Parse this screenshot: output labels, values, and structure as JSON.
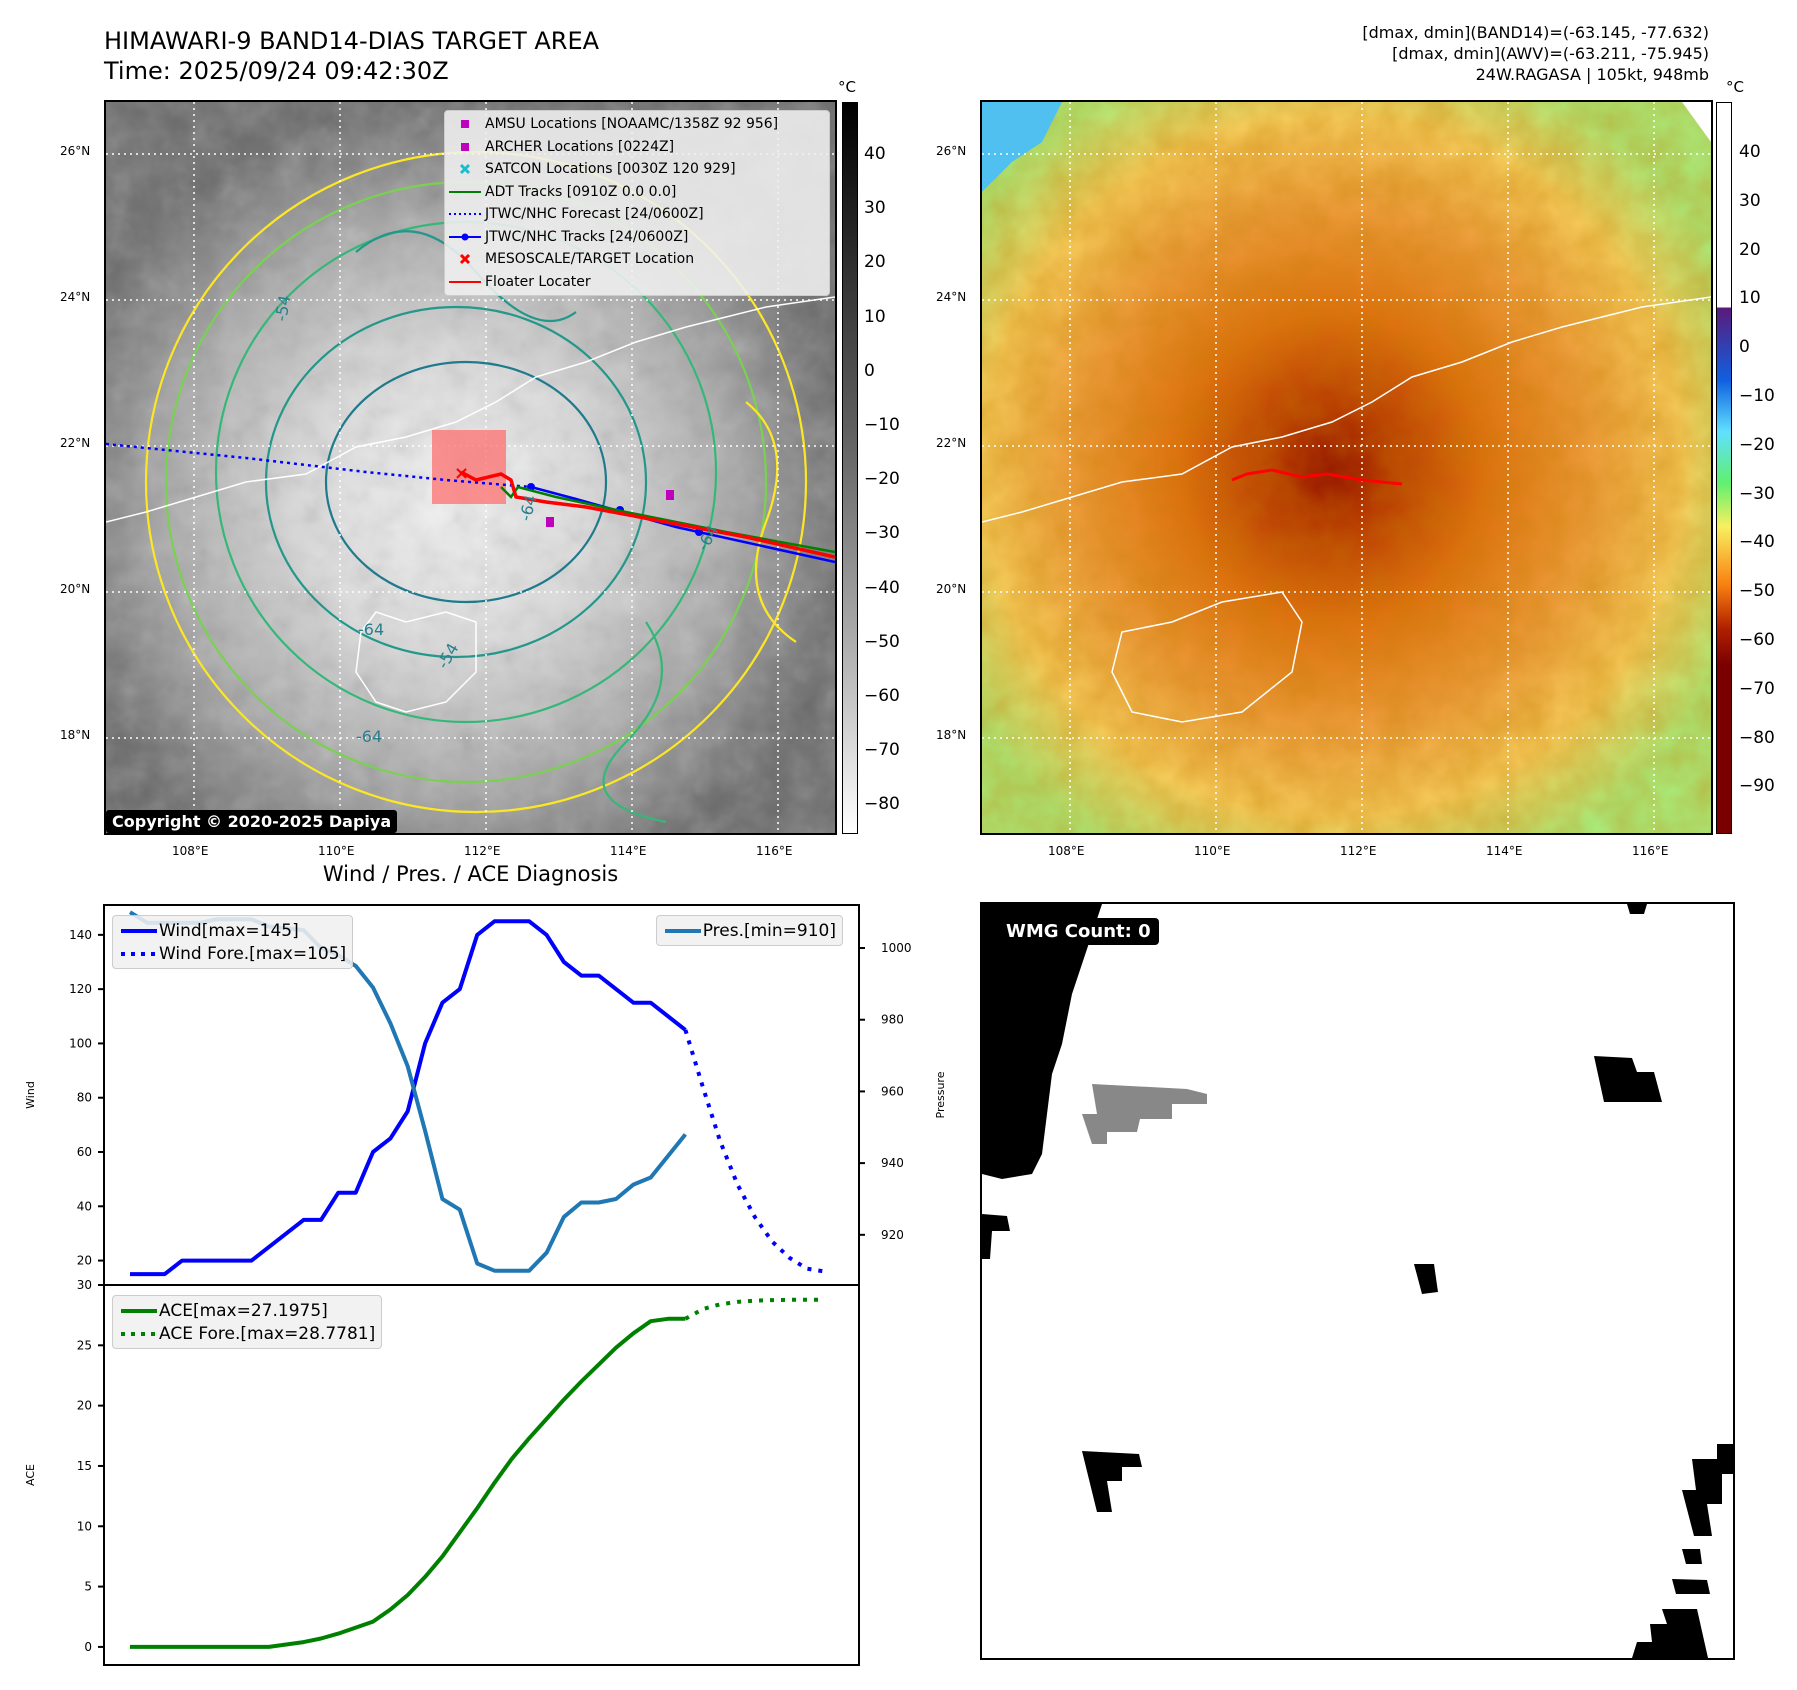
{
  "header": {
    "title_line1": "HIMAWARI-9 BAND14-DIAS TARGET AREA",
    "title_line2": "Time: 2025/09/24 09:42:30Z",
    "stats_line1": "[dmax, dmin](BAND14)=(-63.145, -77.632)",
    "stats_line2": "[dmax, dmin](AWV)=(-63.211, -75.945)",
    "stats_line3": "24W.RAGASA | 105kt, 948mb"
  },
  "map": {
    "lat_labels": [
      "26°N",
      "24°N",
      "22°N",
      "20°N",
      "18°N"
    ],
    "lon_labels": [
      "108°E",
      "110°E",
      "112°E",
      "114°E",
      "116°E"
    ],
    "contour_labels": [
      "-64",
      "-64",
      "-54",
      "-64",
      "-54",
      "-64"
    ],
    "copyright": "Copyright © 2020-2025 Dapiya",
    "legend": [
      {
        "label": "AMSU Locations [NOAAMC/1358Z 92 956]",
        "symbol": "square",
        "color": "#bf00bf"
      },
      {
        "label": "ARCHER Locations [0224Z]",
        "symbol": "square",
        "color": "#bf00bf"
      },
      {
        "label": "SATCON Locations [0030Z 120 929]",
        "symbol": "x",
        "color": "#17becf"
      },
      {
        "label": "ADT Tracks [0910Z 0.0 0.0]",
        "symbol": "line",
        "color": "#008000"
      },
      {
        "label": "JTWC/NHC Forecast [24/0600Z]",
        "symbol": "dotted",
        "color": "#0000ff"
      },
      {
        "label": "JTWC/NHC Tracks [24/0600Z]",
        "symbol": "line-dot",
        "color": "#0000ff"
      },
      {
        "label": "MESOSCALE/TARGET Location",
        "symbol": "x",
        "color": "#ff0000"
      },
      {
        "label": "Floater Locater",
        "symbol": "line",
        "color": "#ff0000"
      }
    ]
  },
  "colorbars": {
    "unit": "°C",
    "gray_ticks": [
      "40",
      "30",
      "20",
      "10",
      "0",
      "−10",
      "−20",
      "−30",
      "−40",
      "−50",
      "−60",
      "−70",
      "−80"
    ],
    "color_ticks": [
      "40",
      "30",
      "20",
      "10",
      "0",
      "−10",
      "−20",
      "−30",
      "−40",
      "−50",
      "−60",
      "−70",
      "−80",
      "−90"
    ]
  },
  "diagnosis": {
    "title": "Wind / Pres. / ACE Diagnosis",
    "wmg_label": "WMG Count: 0"
  },
  "chart_data": [
    {
      "type": "line",
      "title": "Wind / Pres. / ACE Diagnosis",
      "ylabel": "Wind",
      "y2label": "Pressure",
      "ylim": [
        11,
        151
      ],
      "y2lim": [
        906,
        1012
      ],
      "yticks": [
        "20",
        "40",
        "60",
        "80",
        "100",
        "120",
        "140"
      ],
      "y2ticks": [
        "920",
        "940",
        "960",
        "980",
        "1000"
      ],
      "series": [
        {
          "name": "Wind[max=145]",
          "axis": "left",
          "color": "#0000ff",
          "style": "solid",
          "x": [
            0,
            2,
            3,
            7,
            10,
            11,
            12,
            13,
            14,
            15,
            16,
            17,
            18,
            19,
            20,
            21,
            23,
            24,
            25,
            26,
            27,
            28,
            29,
            30,
            32
          ],
          "values": [
            15,
            15,
            20,
            20,
            35,
            35,
            45,
            45,
            60,
            65,
            75,
            100,
            115,
            120,
            140,
            145,
            145,
            140,
            130,
            125,
            125,
            120,
            115,
            115,
            105
          ]
        },
        {
          "name": "Wind Fore.[max=105]",
          "axis": "left",
          "color": "#0000ff",
          "style": "dotted",
          "x": [
            32,
            33,
            34,
            35,
            36,
            37,
            38,
            39,
            40
          ],
          "values": [
            105,
            84,
            64,
            48,
            36,
            27,
            21,
            17,
            16
          ]
        },
        {
          "name": "Pres.[min=910]",
          "axis": "right",
          "color": "#1f77b4",
          "style": "solid",
          "x": [
            0,
            1,
            4,
            5,
            7,
            8,
            10,
            11,
            12,
            13,
            14,
            15,
            16,
            17,
            18,
            19,
            20,
            21,
            23,
            24,
            25,
            26,
            27,
            28,
            29,
            30,
            31,
            32
          ],
          "values": [
            1010,
            1007,
            1007,
            1008,
            1008,
            1006,
            1005,
            1000,
            998,
            995,
            989,
            979,
            967,
            949,
            930,
            927,
            912,
            910,
            910,
            915,
            925,
            929,
            929,
            930,
            934,
            936,
            942,
            948
          ]
        }
      ]
    },
    {
      "type": "line",
      "ylabel": "ACE",
      "ylim": [
        -1.5,
        30
      ],
      "yticks": [
        "0",
        "5",
        "10",
        "15",
        "20",
        "25",
        "30"
      ],
      "series": [
        {
          "name": "ACE[max=27.1975]",
          "color": "#008000",
          "style": "solid",
          "x": [
            0,
            4,
            6,
            8,
            9,
            10,
            11,
            12,
            13,
            14,
            15,
            16,
            17,
            18,
            19,
            20,
            21,
            22,
            23,
            24,
            25,
            26,
            27,
            28,
            29,
            30,
            31,
            32
          ],
          "values": [
            0,
            0,
            0,
            0,
            0.2,
            0.4,
            0.7,
            1.1,
            1.6,
            2.1,
            3.1,
            4.3,
            5.8,
            7.5,
            9.5,
            11.5,
            13.6,
            15.6,
            17.3,
            18.9,
            20.5,
            22.0,
            23.4,
            24.8,
            26.0,
            27.0,
            27.2,
            27.2
          ]
        },
        {
          "name": "ACE Fore.[max=28.7781]",
          "color": "#008000",
          "style": "dotted",
          "x": [
            32,
            33,
            34,
            35,
            36,
            37,
            38,
            39,
            40
          ],
          "values": [
            27.2,
            28.0,
            28.4,
            28.6,
            28.7,
            28.75,
            28.77,
            28.78,
            28.78
          ]
        }
      ]
    }
  ]
}
